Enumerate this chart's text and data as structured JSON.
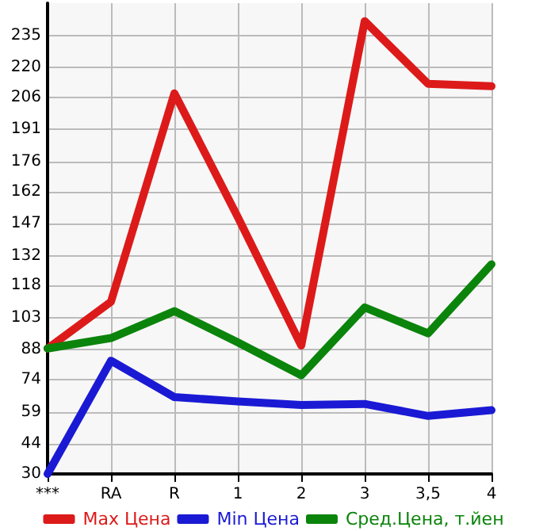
{
  "chart_data": {
    "type": "line",
    "categories": [
      "***",
      "RA",
      "R",
      "1",
      "2",
      "3",
      "3,5",
      "4"
    ],
    "series": [
      {
        "name": "Max Цена",
        "color": "#dd1a1a",
        "values": [
          88.6,
          110.5,
          207.9,
          150,
          90,
          241.6,
          212.3,
          211.2
        ]
      },
      {
        "name": "Min Цена",
        "color": "#1a1ad4",
        "values": [
          30,
          82.9,
          65.9,
          63.9,
          62.2,
          62.7,
          57.1,
          59.8
        ]
      },
      {
        "name": "Сред.Цена, т.йен",
        "color": "#0b840b",
        "values": [
          88.6,
          93.5,
          106.1,
          91.5,
          76.1,
          107.8,
          95.7,
          128
        ]
      }
    ],
    "ylim": [
      30,
      250
    ],
    "yticks": [
      30,
      44,
      59,
      74,
      88,
      103,
      118,
      132,
      147,
      162,
      176,
      191,
      206,
      220,
      235
    ],
    "grid": true,
    "legend": "bottom",
    "marker": "none",
    "line_style": "solid"
  }
}
